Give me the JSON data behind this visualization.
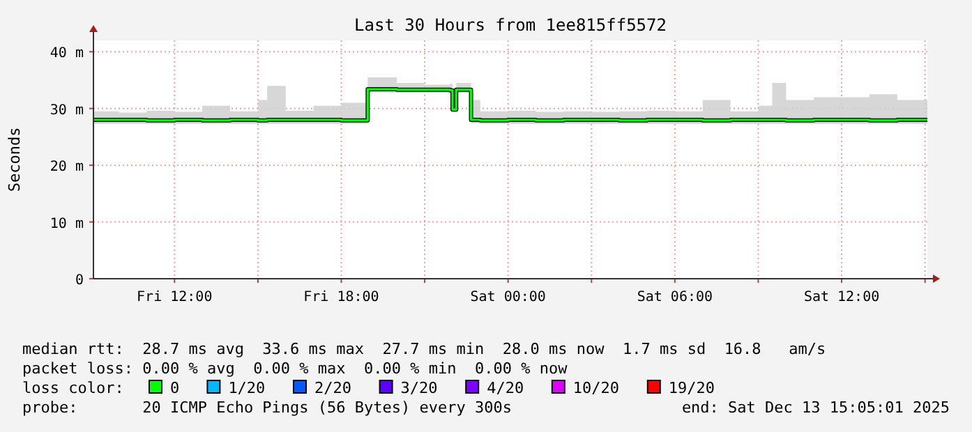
{
  "chart_data": {
    "type": "line",
    "title": "Last 30 Hours from 1ee815ff5572",
    "ylabel": "Seconds",
    "x": [
      "2025-12-12T09:05",
      "2025-12-12T10:00",
      "2025-12-12T11:00",
      "2025-12-12T12:00",
      "2025-12-12T13:00",
      "2025-12-12T14:00",
      "2025-12-12T15:00",
      "2025-12-12T15:20",
      "2025-12-12T16:00",
      "2025-12-12T17:00",
      "2025-12-12T18:00",
      "2025-12-12T18:55",
      "2025-12-12T18:57",
      "2025-12-12T20:00",
      "2025-12-12T21:00",
      "2025-12-12T21:55",
      "2025-12-12T22:00",
      "2025-12-12T22:08",
      "2025-12-12T22:35",
      "2025-12-12T22:40",
      "2025-12-12T23:00",
      "2025-12-13T00:00",
      "2025-12-13T01:00",
      "2025-12-13T02:00",
      "2025-12-13T03:00",
      "2025-12-13T04:00",
      "2025-12-13T05:00",
      "2025-12-13T06:00",
      "2025-12-13T07:00",
      "2025-12-13T08:00",
      "2025-12-13T09:00",
      "2025-12-13T09:30",
      "2025-12-13T10:00",
      "2025-12-13T11:00",
      "2025-12-13T12:00",
      "2025-12-13T13:00",
      "2025-12-13T14:00",
      "2025-12-13T15:05"
    ],
    "series": [
      {
        "name": "0",
        "color": "#00ff00",
        "values": [
          28.0,
          28.0,
          27.9,
          28.0,
          27.9,
          28.0,
          27.9,
          28.0,
          28.0,
          28.0,
          27.9,
          27.9,
          33.4,
          33.3,
          33.3,
          33.2,
          29.8,
          33.3,
          33.3,
          28.0,
          27.9,
          28.0,
          27.9,
          28.0,
          28.0,
          27.9,
          28.0,
          28.0,
          27.9,
          28.0,
          28.0,
          28.0,
          27.9,
          28.0,
          28.0,
          27.9,
          28.0,
          28.0
        ],
        "lower": [
          27.3,
          27.3,
          27.3,
          27.3,
          27.3,
          27.3,
          27.3,
          27.3,
          27.3,
          27.3,
          27.3,
          27.3,
          32.8,
          32.8,
          32.8,
          32.7,
          29.4,
          32.8,
          32.8,
          27.4,
          27.3,
          27.3,
          27.3,
          27.3,
          27.3,
          27.3,
          27.3,
          27.3,
          27.3,
          27.3,
          27.3,
          27.3,
          27.3,
          27.3,
          27.3,
          27.3,
          27.3,
          27.3
        ],
        "upper": [
          29.5,
          29.3,
          29.6,
          29.4,
          30.5,
          29.5,
          31.5,
          34,
          29.6,
          30.5,
          31,
          31,
          35.5,
          34.5,
          34.2,
          34.4,
          31,
          34.5,
          34.5,
          31.5,
          29.5,
          29.6,
          29.4,
          29.5,
          29.4,
          29.5,
          29.6,
          29.5,
          31.5,
          29.5,
          30.5,
          34.5,
          31.5,
          32,
          32,
          32.5,
          31.5,
          30
        ]
      },
      {
        "name": "1/20",
        "color": "#00b8ff",
        "values": [
          null,
          null,
          null,
          null,
          null,
          null,
          null,
          null,
          null,
          null,
          null,
          null,
          null,
          null,
          null,
          null,
          null,
          null,
          null,
          null,
          null,
          null,
          null,
          null,
          null,
          null,
          null,
          null,
          null,
          null,
          null,
          null,
          null,
          null,
          null,
          null,
          null,
          null
        ]
      },
      {
        "name": "2/20",
        "color": "#0059ff",
        "values": [
          null,
          null,
          null,
          null,
          null,
          null,
          null,
          null,
          null,
          null,
          null,
          null,
          null,
          null,
          null,
          null,
          null,
          null,
          null,
          null,
          null,
          null,
          null,
          null,
          null,
          null,
          null,
          null,
          null,
          null,
          null,
          null,
          null,
          null,
          null,
          null,
          null,
          null
        ]
      },
      {
        "name": "3/20",
        "color": "#5e00ff",
        "values": [
          null,
          null,
          null,
          null,
          null,
          null,
          null,
          null,
          null,
          null,
          null,
          null,
          null,
          null,
          null,
          null,
          null,
          null,
          null,
          null,
          null,
          null,
          null,
          null,
          null,
          null,
          null,
          null,
          null,
          null,
          null,
          null,
          null,
          null,
          null,
          null,
          null,
          null
        ]
      },
      {
        "name": "4/20",
        "color": "#7e00ff",
        "values": [
          null,
          null,
          null,
          null,
          null,
          null,
          null,
          null,
          null,
          null,
          null,
          null,
          null,
          null,
          null,
          null,
          null,
          null,
          null,
          null,
          null,
          null,
          null,
          null,
          null,
          null,
          null,
          null,
          null,
          null,
          null,
          null,
          null,
          null,
          null,
          null,
          null,
          null
        ]
      },
      {
        "name": "10/20",
        "color": "#dd00ff",
        "values": [
          null,
          null,
          null,
          null,
          null,
          null,
          null,
          null,
          null,
          null,
          null,
          null,
          null,
          null,
          null,
          null,
          null,
          null,
          null,
          null,
          null,
          null,
          null,
          null,
          null,
          null,
          null,
          null,
          null,
          null,
          null,
          null,
          null,
          null,
          null,
          null,
          null,
          null
        ]
      },
      {
        "name": "19/20",
        "color": "#ff0000",
        "values": [
          null,
          null,
          null,
          null,
          null,
          null,
          null,
          null,
          null,
          null,
          null,
          null,
          null,
          null,
          null,
          null,
          null,
          null,
          null,
          null,
          null,
          null,
          null,
          null,
          null,
          null,
          null,
          null,
          null,
          null,
          null,
          null,
          null,
          null,
          null,
          null,
          null,
          null
        ]
      }
    ],
    "legend": "bottom",
    "legend_title": "loss color:",
    "xlim": [
      "2025-12-12T09:05",
      "2025-12-13T15:05"
    ],
    "xticks": [
      {
        "value": "2025-12-12T12:00",
        "label": "Fri 12:00"
      },
      {
        "value": "2025-12-12T15:00",
        "label": null
      },
      {
        "value": "2025-12-12T18:00",
        "label": "Fri 18:00"
      },
      {
        "value": "2025-12-12T21:00",
        "label": null
      },
      {
        "value": "2025-12-13T00:00",
        "label": "Sat 00:00"
      },
      {
        "value": "2025-12-13T03:00",
        "label": null
      },
      {
        "value": "2025-12-13T06:00",
        "label": "Sat 06:00"
      },
      {
        "value": "2025-12-13T09:00",
        "label": null
      },
      {
        "value": "2025-12-13T12:00",
        "label": "Sat 12:00"
      },
      {
        "value": "2025-12-13T15:00",
        "label": null
      }
    ],
    "ylim": [
      0,
      42
    ],
    "yticks": [
      0,
      {
        "value": 10,
        "label": "10 m"
      },
      {
        "value": 20,
        "label": "20 m"
      },
      {
        "value": 30,
        "label": "30 m"
      },
      {
        "value": 40,
        "label": "40 m"
      }
    ],
    "grid": true,
    "annotations": [
      "median rtt:  28.7 ms avg  33.6 ms max  27.7 ms min  28.0 ms now  1.7 ms sd  16.8   am/s",
      "packet loss: 0.00 % avg  0.00 % max  0.00 % min  0.00 % now",
      "probe:       20 ICMP Echo Pings (56 Bytes) every 300s",
      "end: Sat Dec 13 15:05:01 2025"
    ]
  }
}
